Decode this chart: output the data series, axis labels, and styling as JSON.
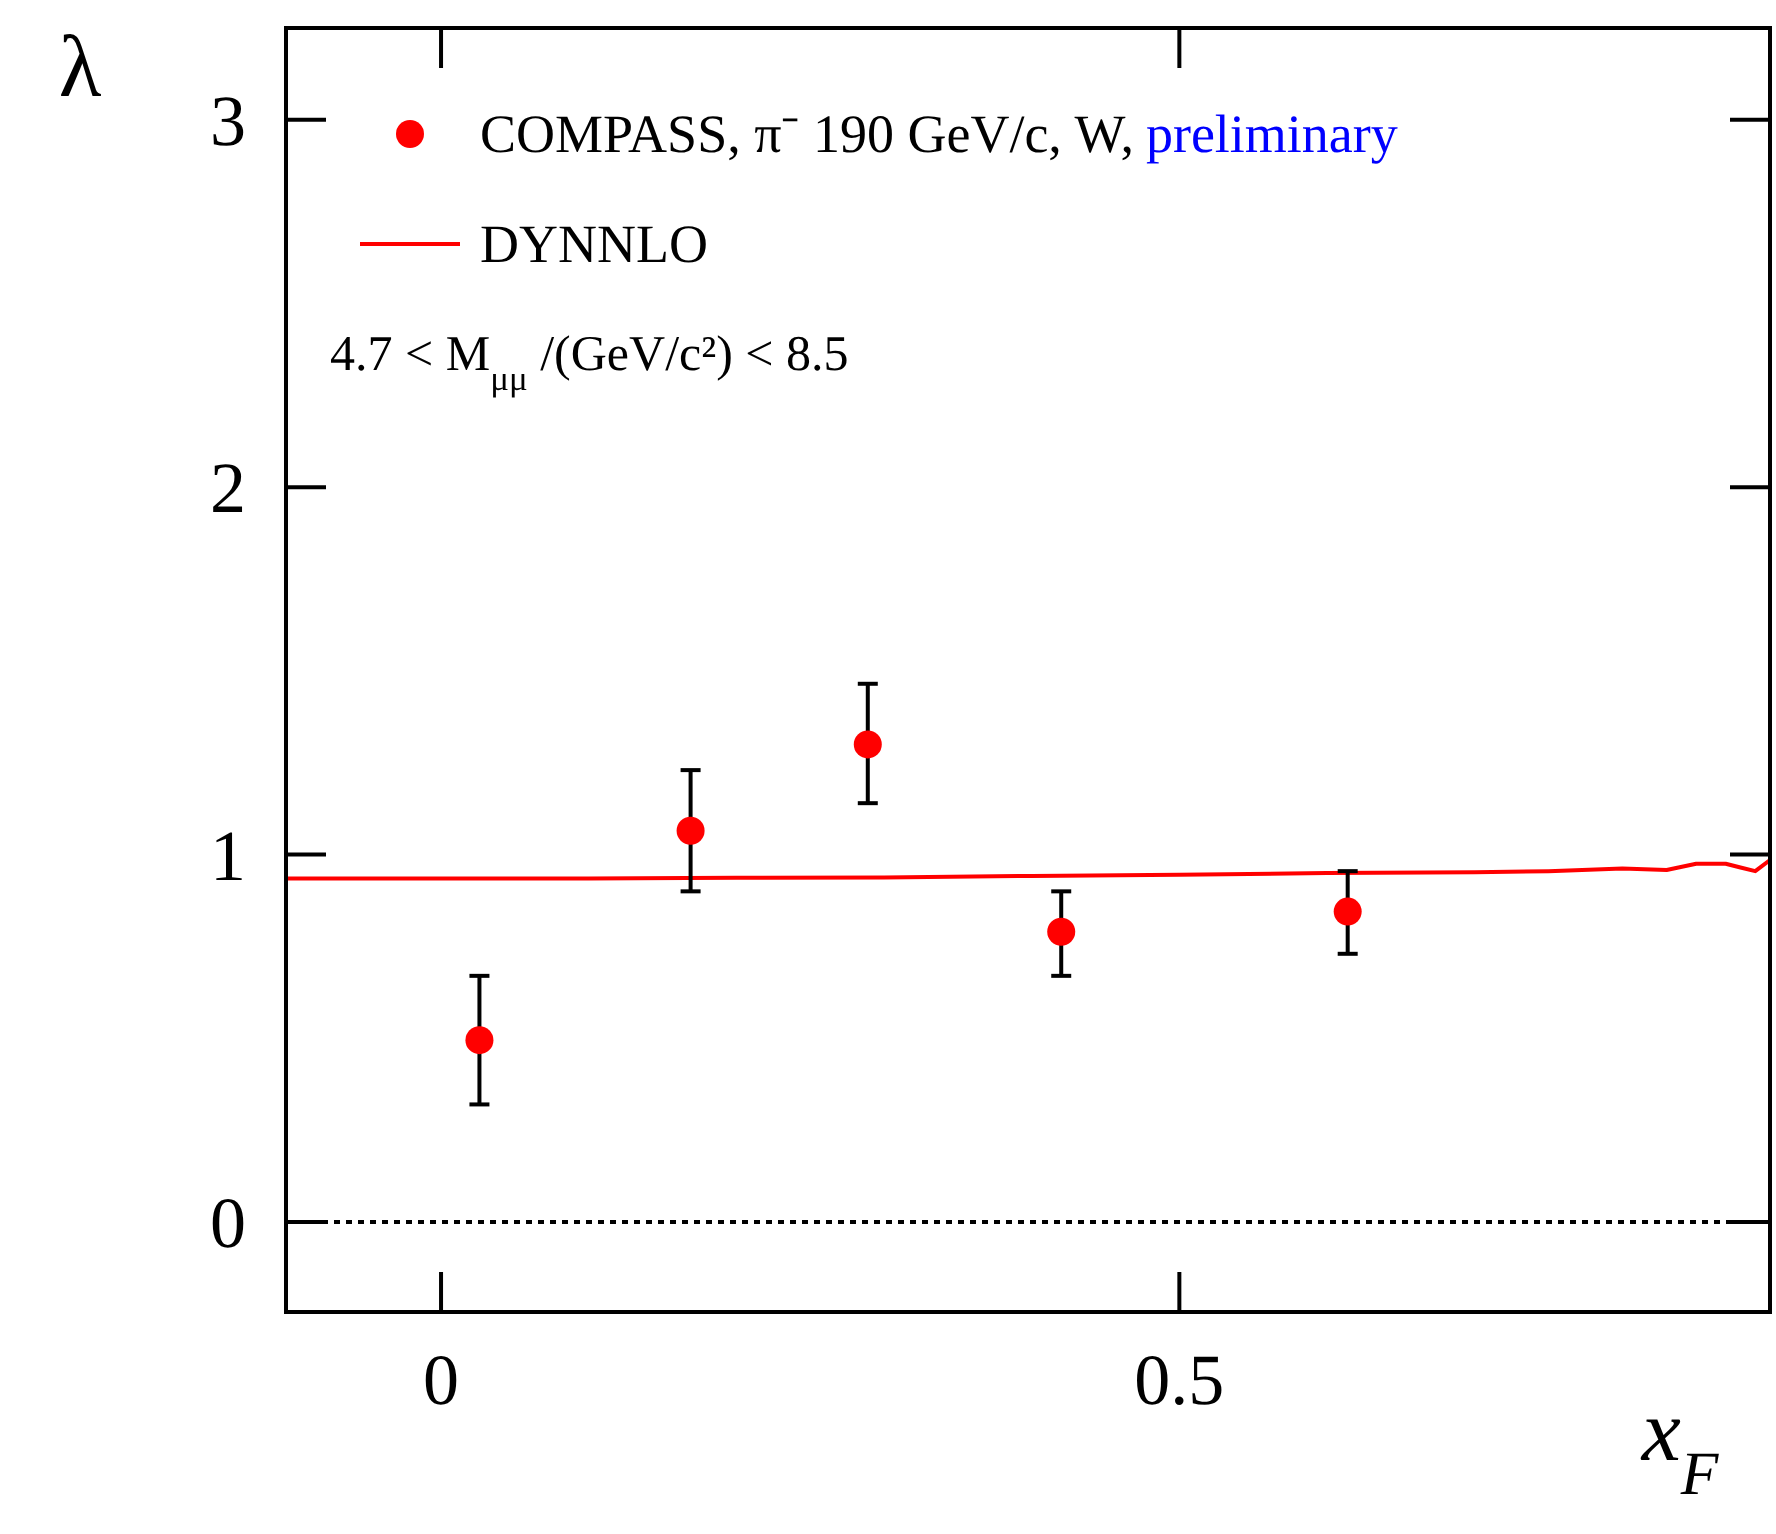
{
  "chart_data": {
    "type": "scatter",
    "xlabel": "x$_{F}$",
    "ylabel": "λ",
    "xlim": [
      -0.105,
      0.9
    ],
    "ylim": [
      -0.245,
      3.25
    ],
    "xticks": [
      0,
      0.5
    ],
    "yticks": [
      0,
      1,
      2,
      3
    ],
    "series": [
      {
        "name": "COMPASS, π⁻ 190 GeV/c, W,",
        "color": "#ff0000",
        "marker": "circle",
        "x": [
          0.026,
          0.169,
          0.289,
          0.42,
          0.614
        ],
        "values": [
          0.495,
          1.065,
          1.3,
          0.79,
          0.845
        ],
        "errors": [
          [
            0.32,
            0.67
          ],
          [
            0.9,
            1.23
          ],
          [
            1.14,
            1.465
          ],
          [
            0.67,
            0.9
          ],
          [
            0.73,
            0.955
          ]
        ]
      },
      {
        "name": "DYNNLO",
        "type": "line",
        "color": "#ff0000",
        "line_style": "solid",
        "x": [
          -0.105,
          0.0,
          0.1,
          0.2,
          0.3,
          0.4,
          0.5,
          0.6,
          0.7,
          0.75,
          0.8,
          0.83,
          0.85,
          0.87,
          0.88,
          0.89,
          0.9
        ],
        "values": [
          0.935,
          0.935,
          0.935,
          0.937,
          0.938,
          0.942,
          0.945,
          0.95,
          0.952,
          0.955,
          0.962,
          0.958,
          0.975,
          0.975,
          0.965,
          0.955,
          0.985
        ]
      }
    ],
    "annotations": [
      "preliminary",
      "4.7 < M$_{μμ}$ /(GeV/c²) < 8.5"
    ],
    "ref_lines": [
      {
        "axis": "y",
        "value": 0,
        "color": "#000000",
        "line_style": "dotted"
      }
    ],
    "legend": "top left"
  }
}
